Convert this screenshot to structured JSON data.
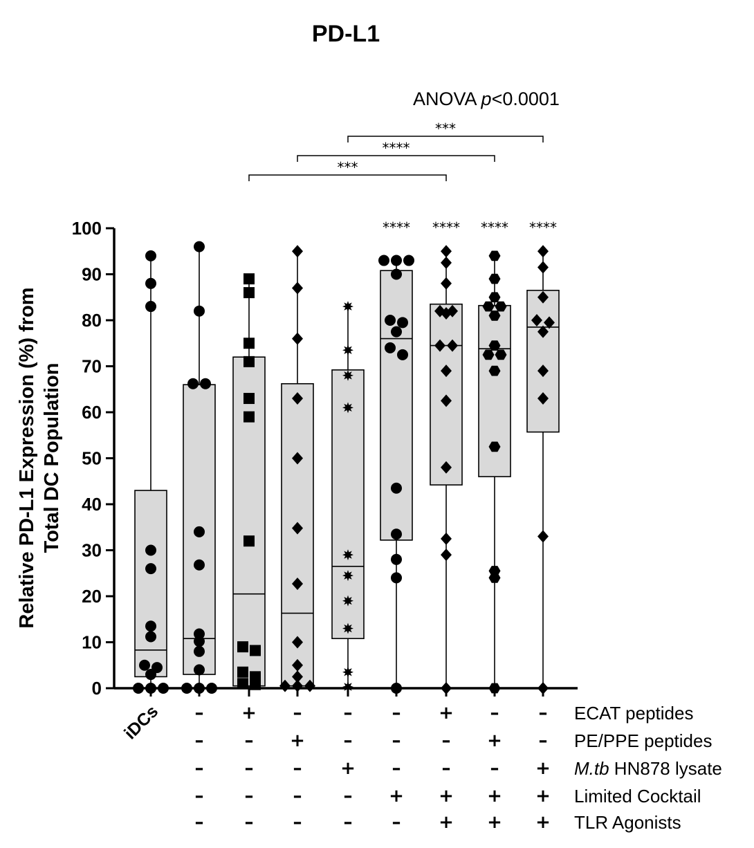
{
  "chart_data": {
    "type": "box",
    "title": "PD-L1",
    "annotation": "ANOVA  p<0.0001",
    "annotation_prefix": "ANOVA  ",
    "annotation_p": "p",
    "annotation_rest": "<0.0001",
    "ylabel_line1": "Relative PD-L1 Expression (%) from",
    "ylabel_line2": "Total  DC Population",
    "ylim": [
      0,
      100
    ],
    "yticks": [
      0,
      10,
      20,
      30,
      40,
      50,
      60,
      70,
      80,
      90,
      100
    ],
    "first_category": "iDCs",
    "condition_rows": [
      {
        "label": "ECAT peptides"
      },
      {
        "label": "PE/PPE peptides"
      },
      {
        "label_italic": "M.tb",
        "label_rest": " HN878 lysate"
      },
      {
        "label": "Limited Cocktail"
      },
      {
        "label": "TLR Agonists"
      }
    ],
    "condition_matrix": [
      [
        "",
        "–",
        "+",
        "–",
        "–",
        "–",
        "+",
        "–",
        "–"
      ],
      [
        "",
        "–",
        "–",
        "+",
        "–",
        "–",
        "–",
        "+",
        "–"
      ],
      [
        "",
        "–",
        "–",
        "–",
        "+",
        "–",
        "–",
        "–",
        "+"
      ],
      [
        "",
        "–",
        "–",
        "–",
        "–",
        "+",
        "+",
        "+",
        "+"
      ],
      [
        "",
        "–",
        "–",
        "–",
        "–",
        "–",
        "+",
        "+",
        "+"
      ]
    ],
    "series": [
      {
        "marker": "circle",
        "min": 0,
        "q1": 2.5,
        "median": 8.3,
        "q3": 43,
        "max": 94,
        "points": [
          94,
          88,
          83,
          30,
          26,
          13.5,
          11.2,
          5,
          4.5,
          3,
          0,
          0,
          0
        ]
      },
      {
        "marker": "circle",
        "min": 0,
        "q1": 3,
        "median": 10.8,
        "q3": 66,
        "max": 96,
        "points": [
          96,
          82,
          66.2,
          66.2,
          34,
          26.8,
          11.8,
          10.2,
          8,
          4,
          0,
          0,
          0
        ]
      },
      {
        "marker": "square",
        "min": 0,
        "q1": 0.5,
        "median": 20.5,
        "q3": 72,
        "max": 89,
        "points": [
          89,
          86,
          75,
          71,
          63,
          59,
          32,
          9,
          8.2,
          3.5,
          2.5,
          1,
          0.8
        ]
      },
      {
        "marker": "diamond",
        "min": 0,
        "q1": 0.5,
        "median": 16.3,
        "q3": 66.2,
        "max": 95,
        "points": [
          95,
          87,
          76,
          63,
          50,
          34.8,
          22.7,
          10,
          5,
          2.5,
          0.5,
          0.5,
          0.5
        ]
      },
      {
        "marker": "asterisk",
        "min": 0,
        "q1": 10.8,
        "median": 26.5,
        "q3": 69.2,
        "max": 83,
        "points": [
          83,
          73.5,
          68,
          61,
          29,
          24.5,
          19,
          13,
          3.5,
          0.3
        ]
      },
      {
        "marker": "circle",
        "min": 0,
        "q1": 32.2,
        "median": 76,
        "q3": 90.8,
        "max": 93,
        "points": [
          93,
          93,
          93,
          90,
          80,
          79.5,
          77.5,
          74,
          72.5,
          43.5,
          33.5,
          28,
          24,
          0
        ]
      },
      {
        "marker": "diamond",
        "min": 0,
        "q1": 44.2,
        "median": 74.5,
        "q3": 83.5,
        "max": 95,
        "points": [
          95,
          92.5,
          88,
          82,
          82,
          81.5,
          74.5,
          74.5,
          69,
          62.5,
          48,
          32.5,
          29,
          0
        ]
      },
      {
        "marker": "hexagon",
        "min": 0,
        "q1": 46,
        "median": 73.8,
        "q3": 83.2,
        "max": 94,
        "points": [
          94,
          89,
          85,
          83,
          83,
          81,
          74.5,
          72.5,
          72.5,
          69,
          52.5,
          25.5,
          24,
          0
        ]
      },
      {
        "marker": "diamond",
        "min": 0,
        "q1": 55.7,
        "median": 78.5,
        "q3": 86.5,
        "max": 95,
        "points": [
          95,
          91.5,
          85,
          80,
          79.5,
          77.5,
          69,
          63,
          33,
          0
        ]
      }
    ],
    "group_significance": [
      "",
      "",
      "",
      "",
      "",
      "****",
      "****",
      "****",
      "****"
    ],
    "comparisons": [
      {
        "from": 2,
        "to": 6,
        "label": "***"
      },
      {
        "from": 3,
        "to": 7,
        "label": "****"
      },
      {
        "from": 4,
        "to": 8,
        "label": "***"
      }
    ],
    "colors": {
      "box_fill": "#d9d9d9",
      "ink": "#000000"
    }
  }
}
